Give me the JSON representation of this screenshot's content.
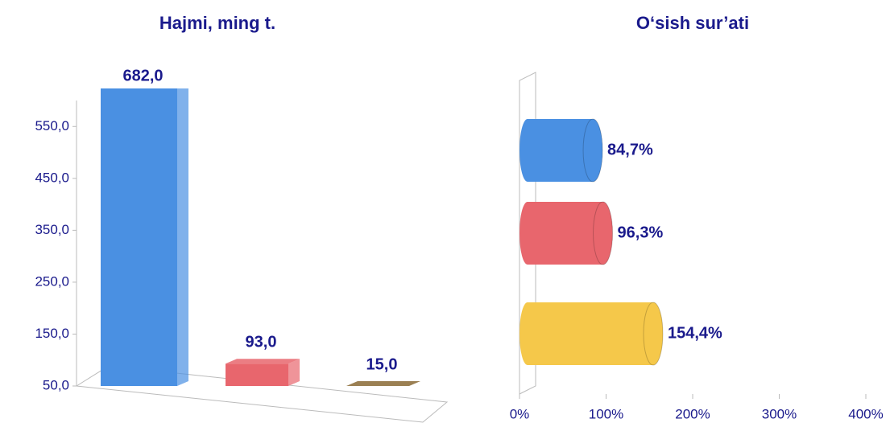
{
  "chart_data": [
    {
      "type": "bar",
      "title": "Hajmi, ming t.",
      "categories": [
        null,
        null,
        null
      ],
      "values": [
        682,
        93,
        15
      ],
      "value_labels": [
        "682,0",
        "93,0",
        "15,0"
      ],
      "colors": [
        "#4a90e2",
        "#e8666d",
        "#8a6a35"
      ],
      "ylim": [
        50,
        600
      ],
      "yticks": [
        {
          "value": 50,
          "label": "50,0"
        },
        {
          "value": 150,
          "label": "150,0"
        },
        {
          "value": 250,
          "label": "250,0"
        },
        {
          "value": 350,
          "label": "350,0"
        },
        {
          "value": 450,
          "label": "450,0"
        },
        {
          "value": 550,
          "label": "550,0"
        }
      ]
    },
    {
      "type": "barh",
      "title": "O‘sish sur’ati",
      "categories": [
        null,
        null,
        null
      ],
      "values": [
        84.7,
        96.3,
        154.4
      ],
      "value_labels": [
        "84,7%",
        "96,3%",
        "154,4%"
      ],
      "colors": [
        "#4a90e2",
        "#e8666d",
        "#f5c84a"
      ],
      "xlim": [
        0,
        400
      ],
      "xticks": [
        {
          "value": 0,
          "label": "0%"
        },
        {
          "value": 100,
          "label": "100%"
        },
        {
          "value": 200,
          "label": "200%"
        },
        {
          "value": 300,
          "label": "300%"
        },
        {
          "value": 400,
          "label": "400%"
        }
      ]
    }
  ]
}
